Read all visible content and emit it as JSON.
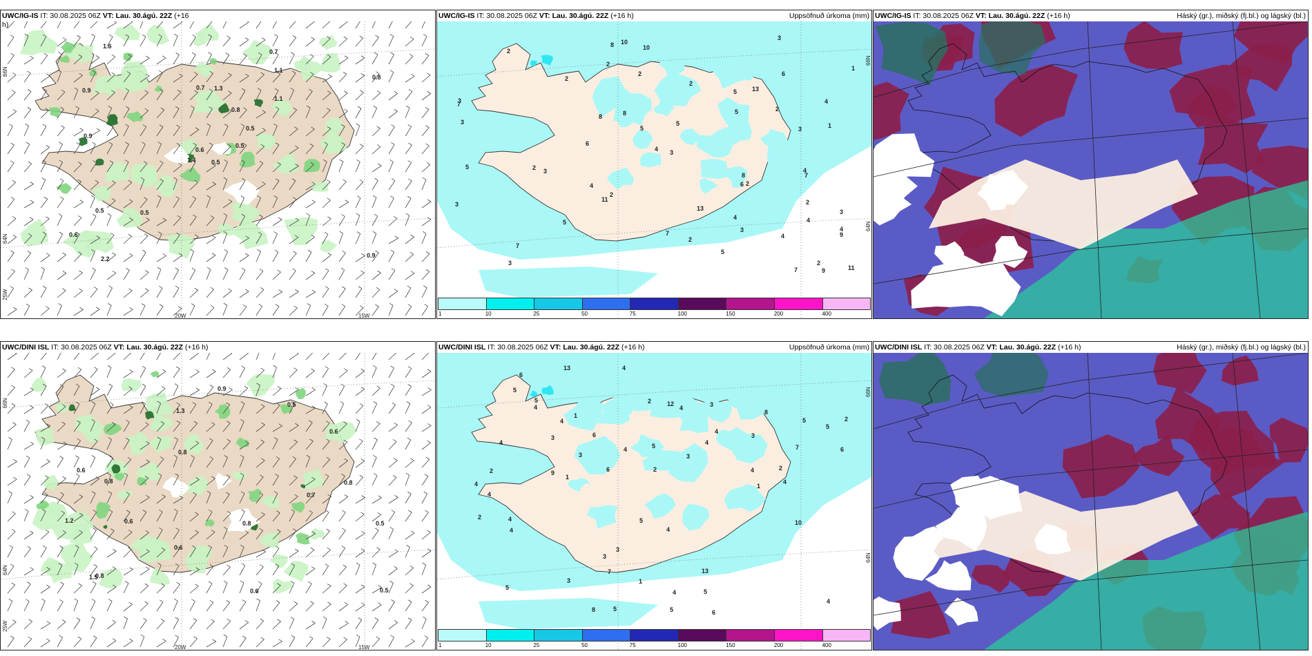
{
  "panels": [
    {
      "model": "UWC/IG-IS",
      "it": "IT: 30.08.2025 06Z",
      "vt_label": "VT:",
      "vt": "Lau. 30.ágú. 22Z",
      "lead": "(+16",
      "lead2": "h)",
      "right": "",
      "kind": "wind"
    },
    {
      "model": "UWC/IG-IS",
      "it": "IT: 30.08.2025 06Z",
      "vt_label": "VT:",
      "vt": "Lau. 30.ágú. 22Z",
      "lead": "(+16 h)",
      "lead2": "",
      "right": "Uppsöfnuð úrkoma (mm)",
      "kind": "precip"
    },
    {
      "model": "UWC/IG-IS",
      "it": "IT: 30.08.2025 06Z",
      "vt_label": "VT:",
      "vt": "Lau. 30.ágú. 22Z",
      "lead": "(+16 h)",
      "lead2": "",
      "right": "Háský (gr.), miðský (fj.bl.) og lágský (bl.)",
      "kind": "cloud"
    },
    {
      "model": "UWC/DINI ISL",
      "it": "IT: 30.08.2025 06Z",
      "vt_label": "VT:",
      "vt": "Lau. 30.ágú. 22Z",
      "lead": "(+16 h)",
      "lead2": "",
      "right": "",
      "kind": "wind"
    },
    {
      "model": "UWC/DINI ISL",
      "it": "IT: 30.08.2025 06Z",
      "vt_label": "VT:",
      "vt": "Lau. 30.ágú. 22Z",
      "lead": "(+16 h)",
      "lead2": "",
      "right": "Uppsöfnuð úrkoma (mm)",
      "kind": "precip"
    },
    {
      "model": "UWC/DINI ISL",
      "it": "IT: 30.08.2025 06Z",
      "vt_label": "VT:",
      "vt": "Lau. 30.ágú. 22Z",
      "lead": "(+16 h)",
      "lead2": "",
      "right": "Háský (gr.), miðský (fj.bl.) og lágský (bl.)",
      "kind": "cloud"
    }
  ],
  "axis": {
    "lon_20": "20W",
    "lon_15": "15W",
    "lat_66": "66N",
    "lat_64": "64N",
    "lat_25": "25W"
  },
  "colorbar": {
    "ticks": [
      "1",
      "10",
      "25",
      "50",
      "75",
      "100",
      "150",
      "200",
      "400"
    ],
    "colors": [
      "#b9fbfb",
      "#00f0f0",
      "#16c8e6",
      "#2e6ef0",
      "#2328b4",
      "#5a0a5a",
      "#b4148c",
      "#ff14c8",
      "#f7b6f5"
    ]
  },
  "colors": {
    "land": "#ead9c4",
    "land_precip": "#fbeee0",
    "precip_light": "#aaf7f7",
    "precip_cyan": "#30e6f0",
    "wind_green": "#c9f3c3",
    "wind_green2": "#7fd57f",
    "wind_dark": "#1f6b2a",
    "cloud_high": "#5b5bc6",
    "cloud_mid": "#8b1f4b",
    "cloud_low": "#29c89a"
  },
  "labels": {
    "wind_top": [
      "0.5",
      "0.9",
      "0.6",
      "0.6",
      "0.5",
      "0.5",
      "0.7",
      "1.3",
      "1.1",
      "0.5",
      "1.6",
      "0.9",
      "0.9",
      "0.8",
      "1.4",
      "1.1",
      "2.2",
      "0.7",
      "0.8",
      "0.5"
    ],
    "wind_bottom": [
      "0.8",
      "0.5",
      "0.6",
      "0.8",
      "1.3",
      "1.2",
      "0.6",
      "0.8",
      "0.8",
      "0.5",
      "0.8",
      "0.9",
      "0.5",
      "0.6",
      "0.6",
      "0.7",
      "0.6",
      "1.5"
    ],
    "precip_top": [
      "2",
      "2",
      "3",
      "2",
      "2",
      "3",
      "10",
      "11",
      "13",
      "2",
      "3",
      "5",
      "4",
      "3",
      "3",
      "7",
      "5",
      "8",
      "10",
      "5",
      "7",
      "9",
      "2",
      "3",
      "4",
      "6",
      "7",
      "8",
      "3",
      "2",
      "4",
      "5",
      "6",
      "8",
      "7",
      "2",
      "3",
      "4",
      "5",
      "6",
      "3",
      "13",
      "2",
      "4",
      "11",
      "3",
      "2",
      "4",
      "5",
      "1",
      "2",
      "9",
      "8",
      "7",
      "4",
      "5",
      "1",
      "2",
      "4"
    ],
    "precip_bottom": [
      "4",
      "4",
      "4",
      "5",
      "6",
      "4",
      "5",
      "4",
      "8",
      "10",
      "13",
      "13",
      "12",
      "4",
      "4",
      "5",
      "6",
      "3",
      "4",
      "5",
      "6",
      "7",
      "4",
      "5",
      "6",
      "3",
      "4",
      "5",
      "4",
      "3",
      "2",
      "1",
      "2",
      "3",
      "4",
      "5",
      "6",
      "7",
      "8",
      "9",
      "4",
      "3",
      "2",
      "4",
      "5",
      "3",
      "4",
      "5",
      "3",
      "2",
      "4",
      "5",
      "4",
      "3",
      "1",
      "2",
      "2",
      "1",
      "1"
    ]
  }
}
